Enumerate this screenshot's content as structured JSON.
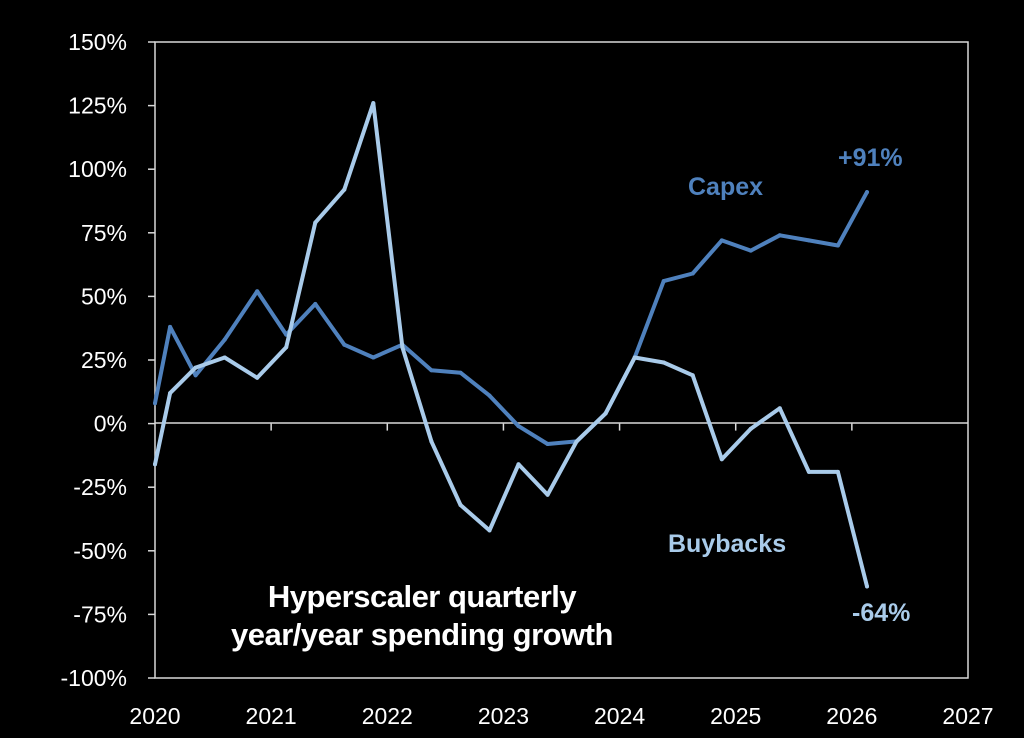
{
  "chart_data": {
    "type": "line",
    "title_lines": [
      "Hyperscaler quarterly",
      "year/year spending growth"
    ],
    "xlabel": "",
    "ylabel": "",
    "xlim": [
      2020,
      2027
    ],
    "ylim": [
      -100,
      150
    ],
    "x_ticks": [
      "2020",
      "2021",
      "2022",
      "2023",
      "2024",
      "2025",
      "2026",
      "2027"
    ],
    "y_ticks": [
      "150%",
      "125%",
      "100%",
      "75%",
      "50%",
      "25%",
      "0%",
      "-25%",
      "-50%",
      "-75%",
      "-100%"
    ],
    "grid": false,
    "colors": {
      "background": "#000000",
      "axis": "#d9d9d9",
      "capex": "#4f81bd",
      "buybacks": "#a9cbea"
    },
    "series": [
      {
        "name": "Capex",
        "key": "capex",
        "end_label": "+91%",
        "x": [
          2020.0,
          2020.13,
          2020.35,
          2020.6,
          2020.88,
          2021.13,
          2021.38,
          2021.63,
          2021.88,
          2022.13,
          2022.38,
          2022.63,
          2022.88,
          2023.13,
          2023.38,
          2023.63,
          2023.88,
          2024.13,
          2024.38,
          2024.63,
          2024.88,
          2025.13,
          2025.38,
          2025.63,
          2025.88,
          2026.13
        ],
        "values": [
          8,
          38,
          19,
          33,
          52,
          35,
          47,
          31,
          26,
          31,
          21,
          20,
          11,
          -1,
          -8,
          -7,
          4,
          26,
          56,
          59,
          72,
          68,
          74,
          72,
          70,
          91
        ]
      },
      {
        "name": "Buybacks",
        "key": "buybacks",
        "end_label": "-64%",
        "x": [
          2020.0,
          2020.13,
          2020.35,
          2020.6,
          2020.88,
          2021.13,
          2021.38,
          2021.63,
          2021.88,
          2022.13,
          2022.38,
          2022.63,
          2022.88,
          2023.13,
          2023.38,
          2023.63,
          2023.88,
          2024.13,
          2024.38,
          2024.63,
          2024.88,
          2025.13,
          2025.38,
          2025.63,
          2025.88,
          2026.13
        ],
        "values": [
          -16,
          12,
          22,
          26,
          18,
          30,
          79,
          92,
          126,
          30,
          -7,
          -32,
          -42,
          -16,
          -28,
          -7,
          4,
          26,
          24,
          19,
          -14,
          -2,
          6,
          -19,
          -19,
          -64
        ]
      }
    ]
  }
}
